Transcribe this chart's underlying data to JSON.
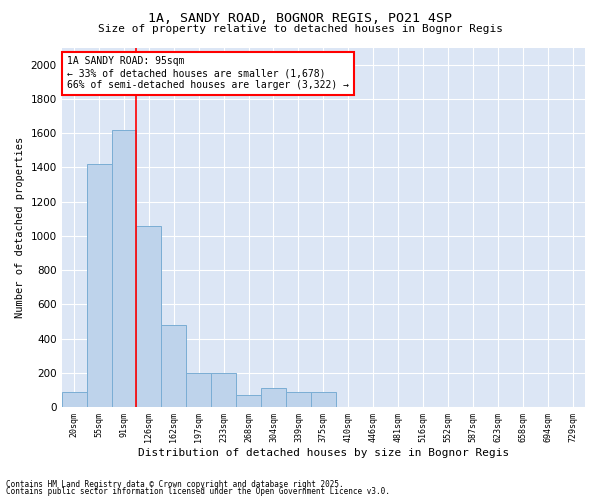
{
  "title1": "1A, SANDY ROAD, BOGNOR REGIS, PO21 4SP",
  "title2": "Size of property relative to detached houses in Bognor Regis",
  "xlabel": "Distribution of detached houses by size in Bognor Regis",
  "ylabel": "Number of detached properties",
  "categories": [
    "20sqm",
    "55sqm",
    "91sqm",
    "126sqm",
    "162sqm",
    "197sqm",
    "233sqm",
    "268sqm",
    "304sqm",
    "339sqm",
    "375sqm",
    "410sqm",
    "446sqm",
    "481sqm",
    "516sqm",
    "552sqm",
    "587sqm",
    "623sqm",
    "658sqm",
    "694sqm",
    "729sqm"
  ],
  "values": [
    90,
    1420,
    1620,
    1060,
    480,
    200,
    200,
    70,
    110,
    90,
    90,
    0,
    0,
    0,
    0,
    0,
    0,
    0,
    0,
    0,
    0
  ],
  "bar_color": "#bed3eb",
  "bar_edge_color": "#7aadd4",
  "vline_x": 2.5,
  "vline_color": "red",
  "annotation_text": "1A SANDY ROAD: 95sqm\n← 33% of detached houses are smaller (1,678)\n66% of semi-detached houses are larger (3,322) →",
  "annotation_box_color": "white",
  "annotation_box_edge": "red",
  "ylim": [
    0,
    2100
  ],
  "yticks": [
    0,
    200,
    400,
    600,
    800,
    1000,
    1200,
    1400,
    1600,
    1800,
    2000
  ],
  "bg_color": "#dce6f5",
  "footer1": "Contains HM Land Registry data © Crown copyright and database right 2025.",
  "footer2": "Contains public sector information licensed under the Open Government Licence v3.0."
}
